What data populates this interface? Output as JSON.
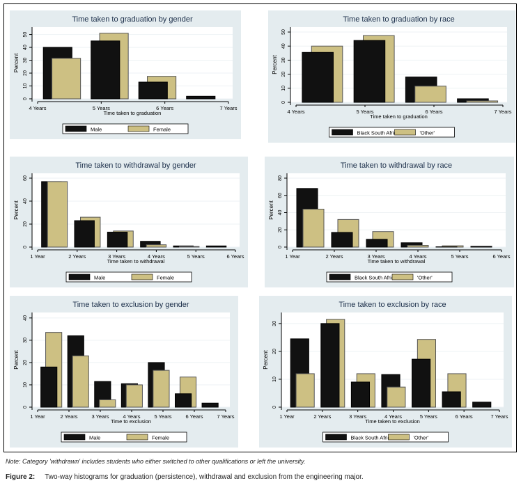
{
  "note": "Note: Category 'withdrawn' includes students who either switched to other qualifications or left the university.",
  "caption": {
    "label": "Figure 2:",
    "text": "Two-way histograms for graduation (persistence), withdrawal and exclusion from the engineering major."
  },
  "colors": {
    "dark": "#111111",
    "tan": "#cdc083",
    "panel": "#e4ecef"
  },
  "chart_data": [
    {
      "type": "bar",
      "title": "Time taken to graduation  by gender",
      "xlabel": "Time taken to graduation",
      "ylabel": "Percent",
      "xticks": [
        "4 Years",
        "5 Years",
        "6 Years",
        "7 Years"
      ],
      "yticks": [
        0,
        10,
        20,
        30,
        40,
        50
      ],
      "ylim": [
        0,
        52
      ],
      "series": [
        {
          "name": "Male",
          "color": "dark",
          "values": [
            40,
            45,
            13,
            2
          ]
        },
        {
          "name": "Female",
          "color": "tan",
          "values": [
            31.5,
            51,
            17.5,
            0
          ]
        }
      ]
    },
    {
      "type": "bar",
      "title": "Time taken to graduation  by  race",
      "xlabel": "Time taken to graduation",
      "ylabel": "Percent",
      "xticks": [
        "4 Years",
        "5 Years",
        "6 Years",
        "7 Years"
      ],
      "yticks": [
        0,
        10,
        20,
        30,
        40,
        50
      ],
      "ylim": [
        0,
        50
      ],
      "series": [
        {
          "name": "Black South African",
          "color": "dark",
          "values": [
            35.5,
            44,
            18,
            2.5
          ]
        },
        {
          "name": "'Other'",
          "color": "tan",
          "values": [
            40,
            47.5,
            11.5,
            1
          ]
        }
      ]
    },
    {
      "type": "bar",
      "title": "Time taken to withdrawal by gender",
      "xlabel": "Time taken to withdrawal",
      "ylabel": "Percent",
      "xticks": [
        "1 Year",
        "2 Years",
        "3 Years",
        "4 Years",
        "5 Years",
        "6 Years"
      ],
      "yticks": [
        0,
        20,
        40,
        60
      ],
      "ylim": [
        0,
        60
      ],
      "series": [
        {
          "name": "Male",
          "color": "dark",
          "values": [
            57,
            23,
            13,
            5,
            1,
            1
          ]
        },
        {
          "name": "Female",
          "color": "tan",
          "values": [
            57,
            26,
            14,
            2,
            0.5,
            0
          ]
        }
      ]
    },
    {
      "type": "bar",
      "title": "Time taken to withdrawal by race",
      "xlabel": "Time taken to withdrawal",
      "ylabel": "Percent",
      "xticks": [
        "1 Year",
        "2 Years",
        "3 Years",
        "4 Years",
        "5 Years",
        "6 Years"
      ],
      "yticks": [
        0,
        20,
        40,
        60,
        80
      ],
      "ylim": [
        0,
        80
      ],
      "series": [
        {
          "name": "Black South African",
          "color": "dark",
          "values": [
            68,
            17,
            9,
            5,
            0.3,
            0.8
          ]
        },
        {
          "name": "'Other'",
          "color": "tan",
          "values": [
            44,
            32,
            18,
            2,
            1.5,
            0
          ]
        }
      ]
    },
    {
      "type": "bar",
      "title": "Time taken to exclusion by gender",
      "xlabel": "Time to exclusion",
      "ylabel": "Percent",
      "xticks": [
        "1 Year",
        "2 Years",
        "3 Years",
        "4 Years",
        "5 Years",
        "6 Years",
        "7 Years"
      ],
      "yticks": [
        0,
        10,
        20,
        30,
        40
      ],
      "ylim": [
        0,
        40
      ],
      "series": [
        {
          "name": "Male",
          "color": "dark",
          "values": [
            18,
            32,
            11.5,
            10.5,
            20,
            6,
            1.8
          ]
        },
        {
          "name": "Female",
          "color": "tan",
          "values": [
            33.5,
            23,
            3.3,
            10,
            16.5,
            13.5,
            0
          ]
        }
      ]
    },
    {
      "type": "bar",
      "title": "Time taken to exclusion by race",
      "xlabel": "Time taken to exclusion",
      "ylabel": "Percent",
      "xticks": [
        "1 Year",
        "2 Years",
        "3 Years",
        "4 Years",
        "5 Years",
        "6 Years",
        "7 Years"
      ],
      "yticks": [
        0,
        10,
        20,
        30
      ],
      "ylim": [
        0,
        32
      ],
      "series": [
        {
          "name": "Black South African",
          "color": "dark",
          "values": [
            24.5,
            30,
            9,
            11.7,
            17.2,
            5.5,
            1.8
          ]
        },
        {
          "name": "'Other'",
          "color": "tan",
          "values": [
            12,
            31.5,
            12,
            7.2,
            24.3,
            12,
            0
          ]
        }
      ]
    }
  ]
}
